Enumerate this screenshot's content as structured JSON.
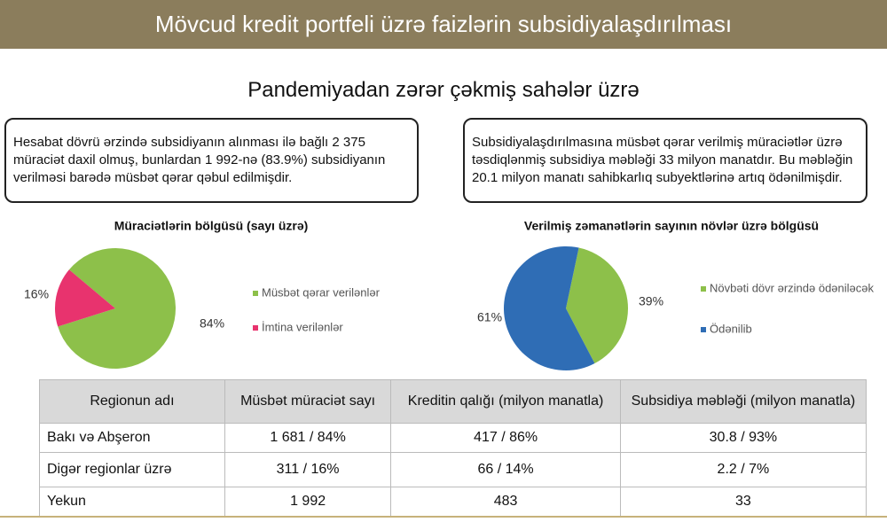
{
  "header": {
    "title": "Mövcud kredit portfeli üzrə faizlərin subsidiyalaşdırılması"
  },
  "subtitle": "Pandemiyadan zərər çəkmiş sahələr üzrə",
  "boxes": [
    "Hesabat dövrü ərzində subsidiyanın alınması ilə bağlı 2 375 müraciət daxil olmuş, bunlardan 1 992-nə (83.9%) subsidiyanın verilməsi barədə müsbət qərar qəbul edilmişdir.",
    "Subsidiyalaşdırılmasına müsbət qərar verilmiş müraciətlər üzrə təsdiqlənmiş subsidiya məbləği 33 milyon manatdır. Bu məbləğin 20.1 milyon manatı sahibkarlıq subyektlərinə artıq ödənilmişdir."
  ],
  "chart_data": [
    {
      "type": "pie",
      "title": "Müraciətlərin bölgüsü (sayı üzrə)",
      "categories": [
        "Müsbət qərar verilənlər",
        "İmtina verilənlər"
      ],
      "values": [
        84,
        16
      ],
      "value_labels": [
        "84%",
        "16%"
      ],
      "colors": [
        "#8dc04a",
        "#e8336e"
      ]
    },
    {
      "type": "pie",
      "title": "Verilmiş zəmanətlərin sayının növlər üzrə bölgüsü",
      "categories": [
        "Növbəti dövr ərzində ödəniləcək",
        "Ödənilib"
      ],
      "values": [
        39,
        61
      ],
      "value_labels": [
        "39%",
        "61%"
      ],
      "colors": [
        "#8dc04a",
        "#2f6db5"
      ]
    }
  ],
  "table": {
    "header": [
      "Regionun adı",
      "Müsbət müraciət sayı",
      "Kreditin qalığı (milyon manatla)",
      "Subsidiya məbləği (milyon manatla)"
    ],
    "rows": [
      [
        "Bakı və Abşeron",
        "1 681 / 84%",
        "417 / 86%",
        "30.8 / 93%"
      ],
      [
        "Digər regionlar üzrə",
        "311 / 16%",
        "66 / 14%",
        "2.2 / 7%"
      ],
      [
        "Yekun",
        "1 992",
        "483",
        "33"
      ]
    ]
  }
}
